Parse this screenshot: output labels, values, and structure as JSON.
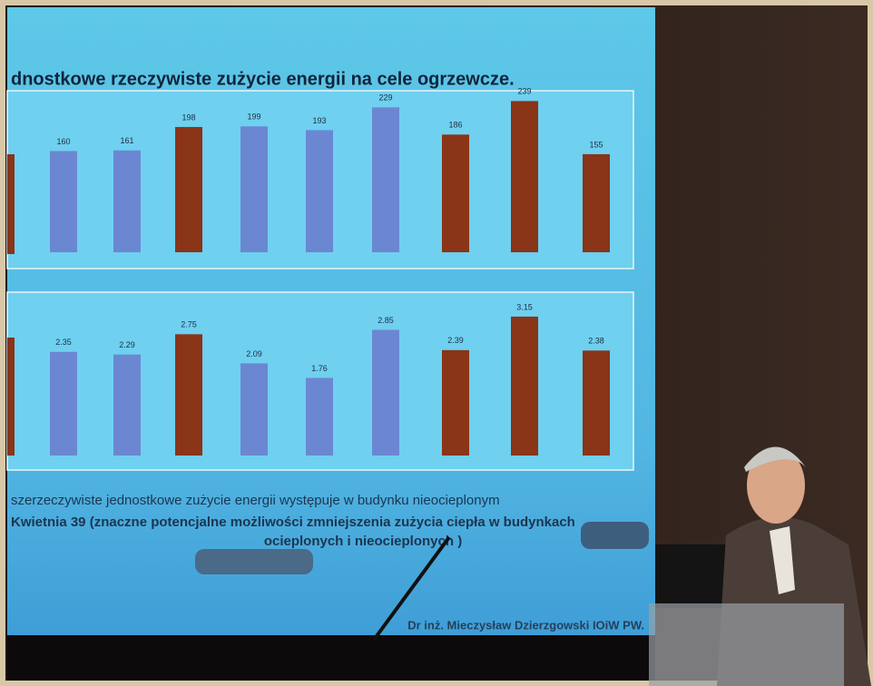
{
  "slide": {
    "title": "dnostkowe  rzeczywiste zużycie energii na cele ogrzewcze.",
    "notes": [
      "szerzeczywiste jednostkowe zużycie energii występuje w budynku nieocieplonym",
      "Kwietnia 39 (znaczne potencjalne możliwości zmniejszenia zużycia ciepła w budynkach",
      "ocieplonych i nieocieplonych )"
    ],
    "footer": "Dr inż. Mieczysław Dzierzgowski IOiW  PW."
  },
  "chart_data": [
    {
      "type": "bar",
      "values": [
        160,
        161,
        198,
        199,
        193,
        229,
        186,
        239,
        155
      ],
      "ylim": [
        0,
        250
      ],
      "colors": [
        "#6b87d2",
        "#6b87d2",
        "#8a3418",
        "#6b87d2",
        "#6b87d2",
        "#6b87d2",
        "#8a3418",
        "#8a3418",
        "#8a3418"
      ]
    },
    {
      "type": "bar",
      "values": [
        2.35,
        2.29,
        2.75,
        2.09,
        1.76,
        2.85,
        2.39,
        3.15,
        2.38
      ],
      "ylim": [
        0,
        3.5
      ],
      "colors": [
        "#6b87d2",
        "#6b87d2",
        "#8a3418",
        "#6b87d2",
        "#6b87d2",
        "#6b87d2",
        "#8a3418",
        "#8a3418",
        "#8a3418"
      ]
    }
  ]
}
